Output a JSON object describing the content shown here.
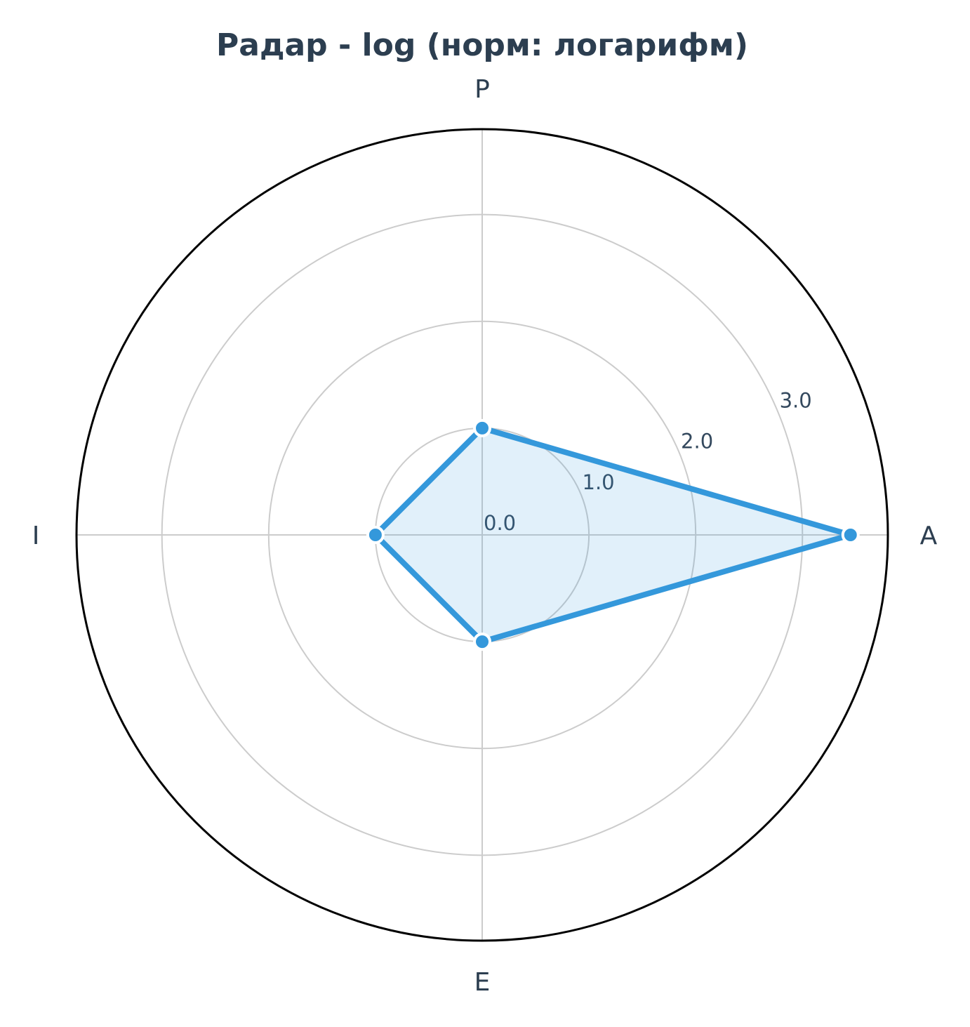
{
  "chart_data": {
    "type": "radar",
    "title": "Радар - log (норм: логарифм)",
    "axes": [
      "A",
      "P",
      "I",
      "E"
    ],
    "series": [
      {
        "values": [
          3.45,
          1.0,
          1.0,
          1.0
        ]
      }
    ],
    "radial_ticks": [
      "0.0",
      "1.0",
      "2.0",
      "3.0"
    ],
    "radial_tick_values": [
      0,
      1,
      2,
      3
    ],
    "rlim": [
      0,
      3.8
    ],
    "grid": true,
    "legend": "none"
  },
  "colors": {
    "series_line": "#3498db",
    "series_fill": "#3498db",
    "grid": "#cccccc",
    "outer_ring": "#000000",
    "text": "#2c3e50"
  }
}
